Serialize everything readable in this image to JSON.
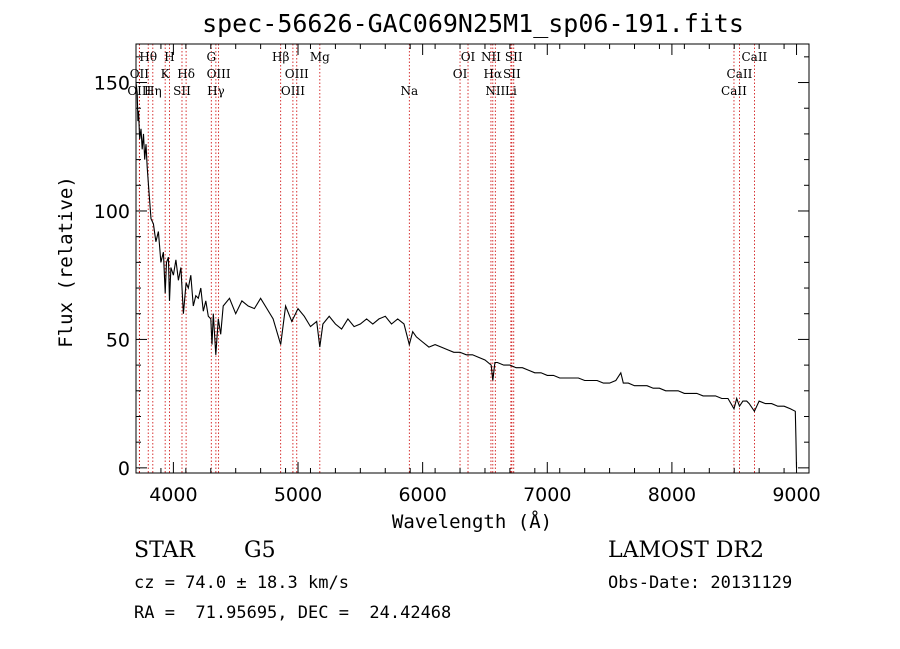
{
  "chart_data": {
    "type": "line",
    "title": "spec-56626-GAC069N25M1_sp06-191.fits",
    "xlabel": "Wavelength (Å)",
    "ylabel": "Flux (relative)",
    "xlim": [
      3700,
      9100
    ],
    "ylim": [
      -2,
      165
    ],
    "x_ticks": [
      4000,
      5000,
      6000,
      7000,
      8000,
      9000
    ],
    "y_ticks": [
      0,
      50,
      100,
      150
    ],
    "grid": false,
    "series": [
      {
        "x": [
          3700,
          3710,
          3715,
          3720,
          3730,
          3740,
          3750,
          3760,
          3770,
          3780,
          3790,
          3800,
          3820,
          3840,
          3860,
          3880,
          3900,
          3920,
          3934,
          3945,
          3960,
          3969,
          3980,
          4000,
          4020,
          4040,
          4060,
          4080,
          4102,
          4120,
          4140,
          4160,
          4180,
          4200,
          4220,
          4240,
          4260,
          4280,
          4300,
          4310,
          4320,
          4340,
          4360,
          4380,
          4400,
          4450,
          4500,
          4550,
          4600,
          4650,
          4700,
          4750,
          4800,
          4861,
          4900,
          4950,
          5000,
          5050,
          5100,
          5150,
          5175,
          5200,
          5250,
          5300,
          5350,
          5400,
          5450,
          5500,
          5550,
          5600,
          5650,
          5700,
          5750,
          5800,
          5850,
          5893,
          5920,
          5950,
          6000,
          6050,
          6100,
          6150,
          6200,
          6250,
          6300,
          6350,
          6400,
          6450,
          6500,
          6550,
          6563,
          6580,
          6600,
          6650,
          6700,
          6750,
          6800,
          6850,
          6900,
          6950,
          7000,
          7050,
          7100,
          7150,
          7200,
          7250,
          7300,
          7350,
          7400,
          7450,
          7500,
          7550,
          7590,
          7600,
          7610,
          7650,
          7700,
          7750,
          7800,
          7850,
          7900,
          7950,
          8000,
          8050,
          8100,
          8150,
          8200,
          8250,
          8300,
          8350,
          8400,
          8450,
          8498,
          8520,
          8542,
          8570,
          8600,
          8620,
          8662,
          8700,
          8750,
          8800,
          8850,
          8900,
          8950,
          8990,
          8995,
          9000
        ],
        "y": [
          150,
          146,
          135,
          139,
          128,
          132,
          124,
          130,
          120,
          126,
          117,
          110,
          97,
          95,
          88,
          92,
          80,
          84,
          68,
          80,
          82,
          65,
          78,
          75,
          81,
          73,
          78,
          60,
          72,
          70,
          75,
          63,
          67,
          66,
          70,
          61,
          65,
          59,
          58,
          48,
          60,
          44,
          58,
          52,
          63,
          66,
          60,
          65,
          63,
          62,
          66,
          62,
          58,
          48,
          63,
          57,
          62,
          59,
          55,
          57,
          47,
          56,
          59,
          56,
          54,
          58,
          55,
          56,
          58,
          56,
          58,
          59,
          56,
          58,
          56,
          48,
          53,
          51,
          49,
          47,
          48,
          47,
          46,
          45,
          45,
          44,
          44,
          43,
          42,
          40,
          34,
          41,
          41,
          40,
          40,
          39,
          39,
          38,
          37,
          37,
          36,
          36,
          35,
          35,
          35,
          35,
          34,
          34,
          34,
          33,
          33,
          34,
          37,
          35,
          33,
          33,
          32,
          32,
          32,
          31,
          31,
          30,
          30,
          30,
          29,
          29,
          29,
          28,
          28,
          28,
          27,
          27,
          23,
          27,
          24,
          26,
          26,
          25,
          22,
          26,
          25,
          25,
          24,
          24,
          23,
          22,
          12,
          0
        ]
      }
    ],
    "lines": [
      {
        "name": "Hθ",
        "wave": 3798,
        "row": 0
      },
      {
        "name": "OII",
        "wave": 3727,
        "row": 1
      },
      {
        "name": "OIII",
        "wave": 3727,
        "row": 2
      },
      {
        "name": "Hη",
        "wave": 3835,
        "row": 2
      },
      {
        "name": "H",
        "wave": 3969,
        "row": 0
      },
      {
        "name": "K",
        "wave": 3934,
        "row": 1
      },
      {
        "name": "Hδ",
        "wave": 4102,
        "row": 1
      },
      {
        "name": "SII",
        "wave": 4069,
        "row": 2
      },
      {
        "name": "G",
        "wave": 4304,
        "row": 0
      },
      {
        "name": "OIII",
        "wave": 4363,
        "row": 1
      },
      {
        "name": "Hγ",
        "wave": 4341,
        "row": 2
      },
      {
        "name": "Hβ",
        "wave": 4861,
        "row": 0
      },
      {
        "name": "OIII",
        "wave": 4990,
        "row": 1
      },
      {
        "name": "OIII",
        "wave": 4959,
        "row": 2
      },
      {
        "name": "Mg",
        "wave": 5175,
        "row": 0
      },
      {
        "name": "Na",
        "wave": 5893,
        "row": 2
      },
      {
        "name": "OI",
        "wave": 6364,
        "row": 0
      },
      {
        "name": "OI",
        "wave": 6300,
        "row": 1
      },
      {
        "name": "NII",
        "wave": 6548,
        "row": 0
      },
      {
        "name": "NII",
        "wave": 6583,
        "row": 2
      },
      {
        "name": "Hα",
        "wave": 6563,
        "row": 1
      },
      {
        "name": "SII",
        "wave": 6731,
        "row": 0
      },
      {
        "name": "SII",
        "wave": 6716,
        "row": 1
      },
      {
        "name": "Li",
        "wave": 6708,
        "row": 2
      },
      {
        "name": "CaII",
        "wave": 8662,
        "row": 0
      },
      {
        "name": "CaII",
        "wave": 8542,
        "row": 1
      },
      {
        "name": "CaII",
        "wave": 8498,
        "row": 2
      }
    ]
  },
  "footer": {
    "class_label": "STAR",
    "subclass": "G5",
    "survey": "LAMOST DR2",
    "redshift": "cz = 74.0 ± 18.3 km/s",
    "obs_date": "Obs-Date: 20131129",
    "coords": "RA =  71.95695, DEC =  24.42468"
  },
  "colors": {
    "axes": "#000000",
    "spectrum": "#000000",
    "line_markers": "#cc0000"
  }
}
